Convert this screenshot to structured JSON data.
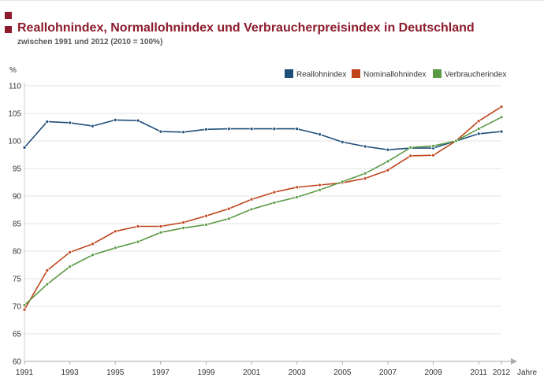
{
  "header": {
    "title": "Reallohnindex, Normallohnindex und Verbraucherpreisindex in Deutschland",
    "subtitle": "zwischen 1991 und 2012 (2010 = 100%)"
  },
  "chart_data": {
    "type": "line",
    "title": "Reallohnindex, Normallohnindex und Verbraucherpreisindex in Deutschland",
    "subtitle": "zwischen 1991 und 2012 (2010 = 100%)",
    "xlabel": "Jahre",
    "ylabel": "%",
    "x": [
      1991,
      1992,
      1993,
      1994,
      1995,
      1996,
      1997,
      1998,
      1999,
      2000,
      2001,
      2002,
      2003,
      2004,
      2005,
      2006,
      2007,
      2008,
      2009,
      2010,
      2011,
      2012
    ],
    "xticks": [
      1991,
      1993,
      1995,
      1997,
      1999,
      2001,
      2003,
      2005,
      2007,
      2009,
      2011,
      2012
    ],
    "yticks": [
      60,
      65,
      70,
      75,
      80,
      85,
      90,
      95,
      100,
      105,
      110
    ],
    "ylim": [
      60,
      110
    ],
    "grid": true,
    "legend_position": "top-right",
    "series": [
      {
        "name": "Reallohnindex",
        "color": "#1f4e79",
        "values": [
          98.8,
          103.5,
          103.3,
          102.7,
          103.8,
          103.7,
          101.7,
          101.6,
          102.1,
          102.2,
          102.2,
          102.2,
          102.2,
          101.2,
          99.8,
          99.0,
          98.4,
          98.7,
          98.7,
          100.0,
          101.3,
          101.7
        ]
      },
      {
        "name": "Nominallohnindex",
        "color": "#c0441b",
        "values": [
          69.4,
          76.5,
          79.8,
          81.3,
          83.6,
          84.5,
          84.5,
          85.2,
          86.4,
          87.7,
          89.4,
          90.7,
          91.6,
          92.0,
          92.4,
          93.2,
          94.7,
          97.3,
          97.4,
          100.0,
          103.6,
          106.2
        ]
      },
      {
        "name": "Verbraucherindex",
        "color": "#5b9a45",
        "values": [
          70.2,
          74.0,
          77.2,
          79.3,
          80.6,
          81.7,
          83.4,
          84.2,
          84.8,
          85.9,
          87.6,
          88.8,
          89.8,
          91.1,
          92.6,
          94.1,
          96.3,
          98.8,
          99.1,
          100.0,
          102.2,
          104.3
        ]
      }
    ]
  }
}
